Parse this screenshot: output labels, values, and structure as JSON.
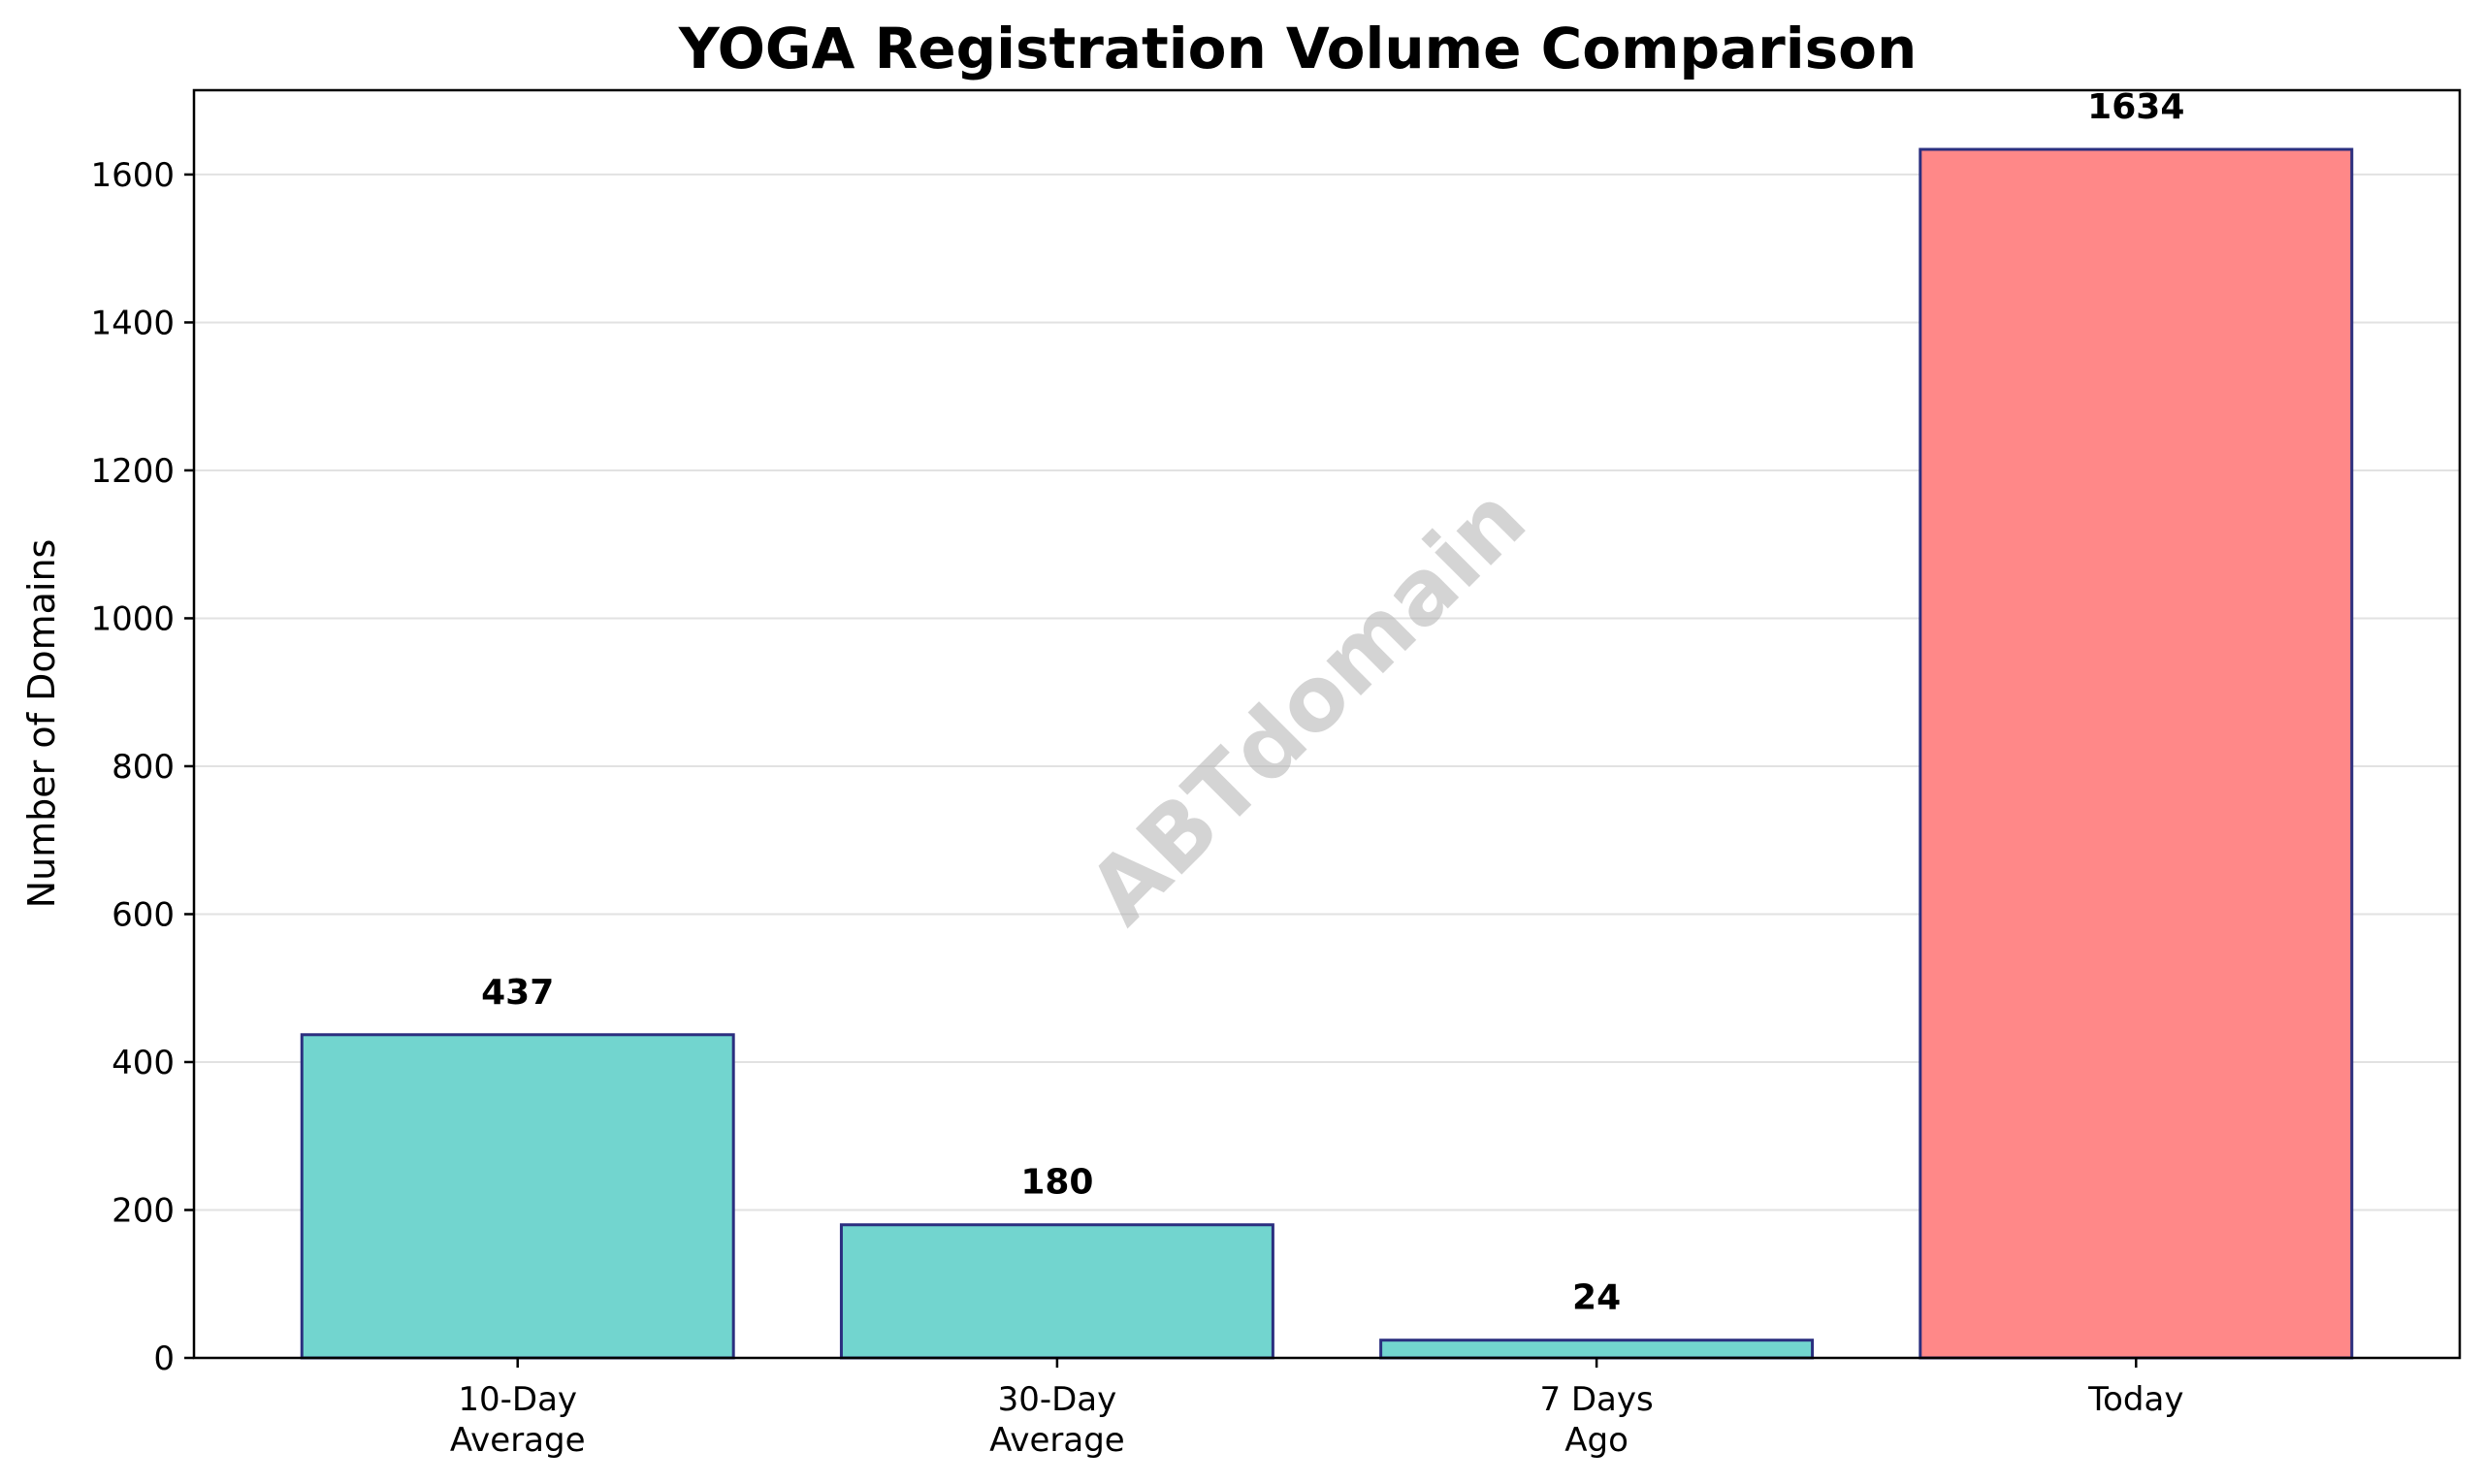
{
  "chart_data": {
    "type": "bar",
    "title": "YOGA Registration Volume Comparison",
    "xlabel": "",
    "ylabel": "Number of Domains",
    "categories": [
      [
        "10-Day",
        "Average"
      ],
      [
        "30-Day",
        "Average"
      ],
      [
        "7 Days",
        "Ago"
      ],
      [
        "Today"
      ]
    ],
    "values": [
      437,
      180,
      24,
      1634
    ],
    "value_labels": [
      "437",
      "180",
      "24",
      "1634"
    ],
    "bar_colors": [
      "#72d5cf",
      "#72d5cf",
      "#72d5cf",
      "#ff8888"
    ],
    "bar_edge_color": "#2b2f7f",
    "ylim": [
      0,
      1714
    ],
    "yticks": [
      0,
      200,
      400,
      600,
      800,
      1000,
      1200,
      1400,
      1600
    ],
    "grid": "y",
    "watermark": "ABTdomain"
  }
}
